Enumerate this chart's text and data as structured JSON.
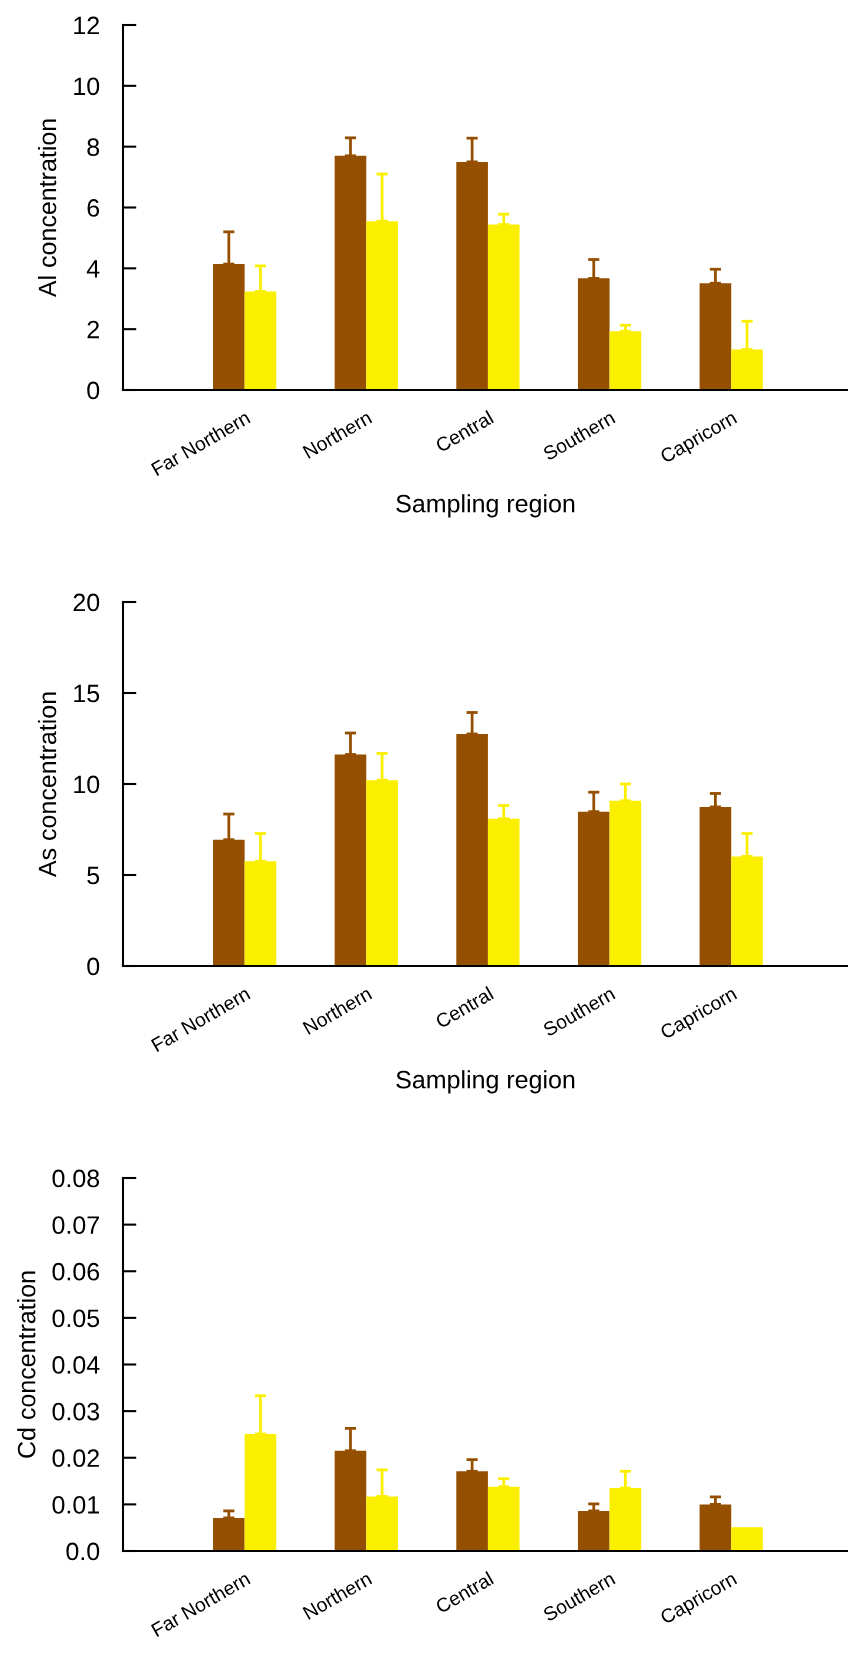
{
  "chart_data": [
    {
      "type": "bar",
      "ylabel": "Al concentration",
      "xlabel": "Sampling region",
      "categories": [
        "Far Northern",
        "Northern",
        "Central",
        "Southern",
        "Capricorn"
      ],
      "ylim": [
        0,
        12
      ],
      "yticks": [
        0,
        2,
        4,
        6,
        8,
        10,
        12
      ],
      "grid": false,
      "series": [
        {
          "color": "#954f00",
          "values": [
            4.14,
            7.7,
            7.5,
            3.67,
            3.51
          ],
          "errors": [
            [
              4.14,
              5.2
            ],
            [
              7.7,
              8.29
            ],
            [
              7.5,
              8.28
            ],
            [
              3.67,
              4.29
            ],
            [
              3.51,
              3.97
            ]
          ]
        },
        {
          "color": "#fbef00",
          "values": [
            3.24,
            5.55,
            5.44,
            1.93,
            1.33
          ],
          "errors": [
            [
              3.24,
              4.08
            ],
            [
              5.55,
              7.1
            ],
            [
              5.44,
              5.78
            ],
            [
              1.93,
              2.13
            ],
            [
              1.33,
              2.26
            ]
          ]
        }
      ]
    },
    {
      "type": "bar",
      "ylabel": "As concentration",
      "xlabel": "Sampling region",
      "categories": [
        "Far Northern",
        "Northern",
        "Central",
        "Southern",
        "Capricorn"
      ],
      "ylim": [
        0,
        20
      ],
      "yticks": [
        0,
        5,
        10,
        15,
        20
      ],
      "grid": false,
      "series": [
        {
          "color": "#954f00",
          "values": [
            6.94,
            11.62,
            12.75,
            8.48,
            8.74
          ],
          "errors": [
            [
              6.94,
              8.35
            ],
            [
              11.62,
              12.8
            ],
            [
              12.75,
              13.93
            ],
            [
              8.48,
              9.55
            ],
            [
              8.74,
              9.48
            ]
          ]
        },
        {
          "color": "#fbef00",
          "values": [
            5.76,
            10.21,
            8.09,
            9.08,
            6.02
          ],
          "errors": [
            [
              5.76,
              7.28
            ],
            [
              10.21,
              11.68
            ],
            [
              8.09,
              8.82
            ],
            [
              9.08,
              10.0
            ],
            [
              6.02,
              7.28
            ]
          ]
        }
      ]
    },
    {
      "type": "bar",
      "ylabel": "Cd concentration",
      "categories": [
        "Far Northern",
        "Northern",
        "Central",
        "Southern",
        "Capricorn"
      ],
      "ylim": [
        0,
        0.08
      ],
      "yticks": [
        {
          "value": 0,
          "label": "0.0"
        },
        0.01,
        0.02,
        0.03,
        0.04,
        0.05,
        0.06,
        0.07,
        0.08
      ],
      "grid": false,
      "series": [
        {
          "color": "#954f00",
          "values": [
            0.0071,
            0.0215,
            0.0171,
            0.0086,
            0.01
          ],
          "errors": [
            [
              0.0071,
              0.0086
            ],
            [
              0.0215,
              0.0263
            ],
            [
              0.0171,
              0.0196
            ],
            [
              0.0086,
              0.0101
            ],
            [
              0.01,
              0.0116
            ]
          ]
        },
        {
          "color": "#fbef00",
          "values": [
            0.0251,
            0.0117,
            0.0138,
            0.0135,
            0.0051
          ],
          "errors": [
            [
              0.0251,
              0.0333
            ],
            [
              0.0117,
              0.0174
            ],
            [
              0.0138,
              0.0155
            ],
            [
              0.0135,
              0.0171
            ],
            null
          ]
        }
      ]
    }
  ]
}
